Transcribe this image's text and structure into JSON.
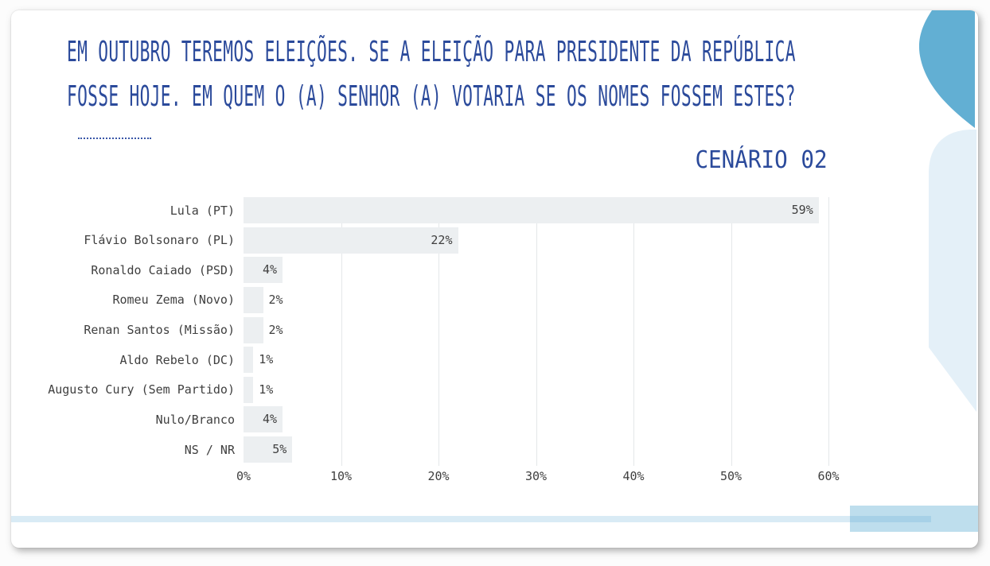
{
  "slide": {
    "title_line1": "EM OUTUBRO TEREMOS ELEIÇÕES. SE A ELEIÇÃO PARA PRESIDENTE DA REPÚBLICA",
    "title_line2": "FOSSE HOJE. EM QUEM O (A) SENHOR (A) VOTARIA SE OS NOMES FOSSEM ESTES?",
    "scenario_label": "CENÁRIO 02"
  },
  "chart_data": {
    "type": "bar",
    "orientation": "horizontal",
    "title": "CENÁRIO 02",
    "categories": [
      "Lula (PT)",
      "Flávio Bolsonaro (PL)",
      "Ronaldo Caiado (PSD)",
      "Romeu Zema (Novo)",
      "Renan Santos (Missão)",
      "Aldo Rebelo (DC)",
      "Augusto Cury (Sem Partido)",
      "Nulo/Branco",
      "NS / NR"
    ],
    "values": [
      59,
      22,
      4,
      2,
      2,
      1,
      1,
      4,
      5
    ],
    "value_labels": [
      "59%",
      "22%",
      "4%",
      "2%",
      "2%",
      "1%",
      "1%",
      "4%",
      "5%"
    ],
    "x_ticks": [
      "0%",
      "10%",
      "20%",
      "30%",
      "40%",
      "50%",
      "60%"
    ],
    "xlim": [
      0,
      60
    ],
    "xlabel": "",
    "ylabel": "",
    "grid": "vertical-only",
    "legend": "none",
    "bar_color": "#ECEFF1",
    "text_color": "#3F3F3F"
  },
  "colors": {
    "title_blue": "#2B4A9B",
    "grid_line": "#E4E7E9",
    "deco_top_shape": "#62AFD3",
    "deco_side_shape": "#E4F0F8",
    "footer_strip": "#D9EBF5",
    "footer_rect": "#BEDEED",
    "footer_overlap": "#A7D1E7",
    "card_bg": "#FFFFFF"
  }
}
